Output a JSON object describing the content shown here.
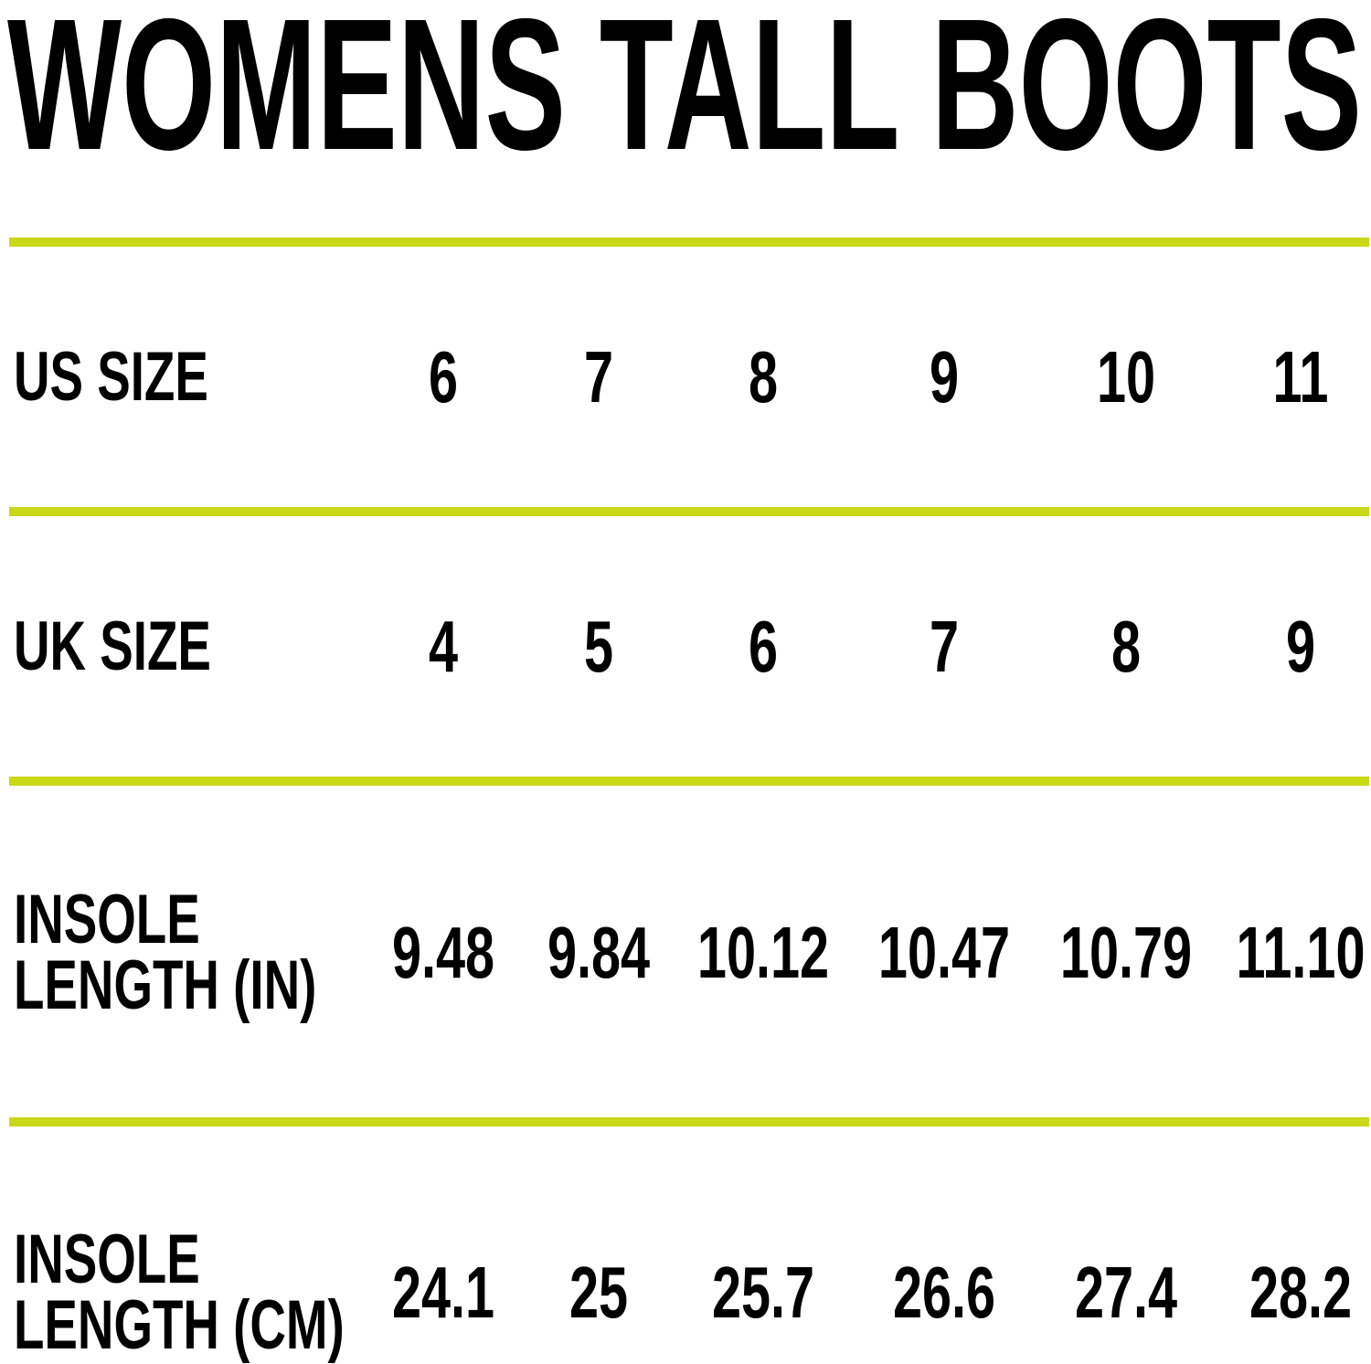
{
  "title": "WOMENS TALL BOOTS",
  "accent_color": "#c9d817",
  "rows": [
    {
      "label_lines": [
        "US SIZE"
      ],
      "values": [
        "6",
        "7",
        "8",
        "9",
        "10",
        "11"
      ]
    },
    {
      "label_lines": [
        "UK SIZE"
      ],
      "values": [
        "4",
        "5",
        "6",
        "7",
        "8",
        "9"
      ]
    },
    {
      "label_lines": [
        "INSOLE",
        "LENGTH (IN)"
      ],
      "values": [
        "9.48",
        "9.84",
        "10.12",
        "10.47",
        "10.79",
        "11.10"
      ]
    },
    {
      "label_lines": [
        "INSOLE",
        "LENGTH (CM)"
      ],
      "values": [
        "24.1",
        "25",
        "25.7",
        "26.6",
        "27.4",
        "28.2"
      ]
    }
  ]
}
